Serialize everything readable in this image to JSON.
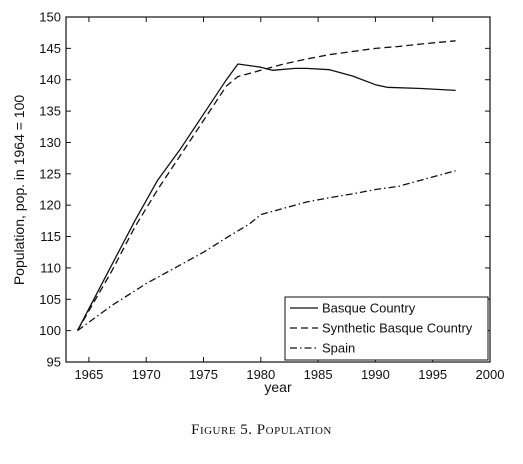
{
  "caption": "Figure 5. Population",
  "chart_data": {
    "type": "line",
    "xlabel": "year",
    "ylabel": "Population, pop. in 1964 = 100",
    "xlim": [
      1963,
      2000
    ],
    "ylim": [
      95,
      150
    ],
    "xticks": [
      1965,
      1970,
      1975,
      1980,
      1985,
      1990,
      1995,
      2000
    ],
    "yticks": [
      95,
      100,
      105,
      110,
      115,
      120,
      125,
      130,
      135,
      140,
      145,
      150
    ],
    "legend_position": "bottom-right",
    "grid": false,
    "series": [
      {
        "name": "Basque Country",
        "style": "solid",
        "x": [
          1964,
          1967,
          1969,
          1971,
          1973,
          1975,
          1977,
          1978,
          1980,
          1981,
          1983,
          1984,
          1986,
          1988,
          1990,
          1991,
          1994,
          1997
        ],
        "y": [
          100,
          110.5,
          117.5,
          124,
          129,
          134.5,
          140,
          142.5,
          142,
          141.5,
          141.8,
          141.8,
          141.6,
          140.6,
          139.2,
          138.8,
          138.6,
          138.3
        ]
      },
      {
        "name": "Synthetic Basque Country",
        "style": "dashed",
        "x": [
          1964,
          1967,
          1969,
          1971,
          1973,
          1975,
          1977,
          1978,
          1980,
          1982,
          1984,
          1986,
          1988,
          1990,
          1992,
          1994,
          1997
        ],
        "y": [
          100,
          109.5,
          116.5,
          122.5,
          128,
          133.5,
          139,
          140.5,
          141.5,
          142.5,
          143.3,
          144,
          144.5,
          145,
          145.3,
          145.7,
          146.2
        ]
      },
      {
        "name": "Spain",
        "style": "dashdot",
        "x": [
          1964,
          1967,
          1970,
          1973,
          1975,
          1977,
          1979,
          1980,
          1982,
          1984,
          1986,
          1988,
          1990,
          1992,
          1994,
          1997
        ],
        "y": [
          100,
          104,
          107.5,
          110.5,
          112.5,
          114.8,
          117,
          118.5,
          119.5,
          120.5,
          121.2,
          121.8,
          122.5,
          123,
          124,
          125.5
        ]
      }
    ]
  }
}
